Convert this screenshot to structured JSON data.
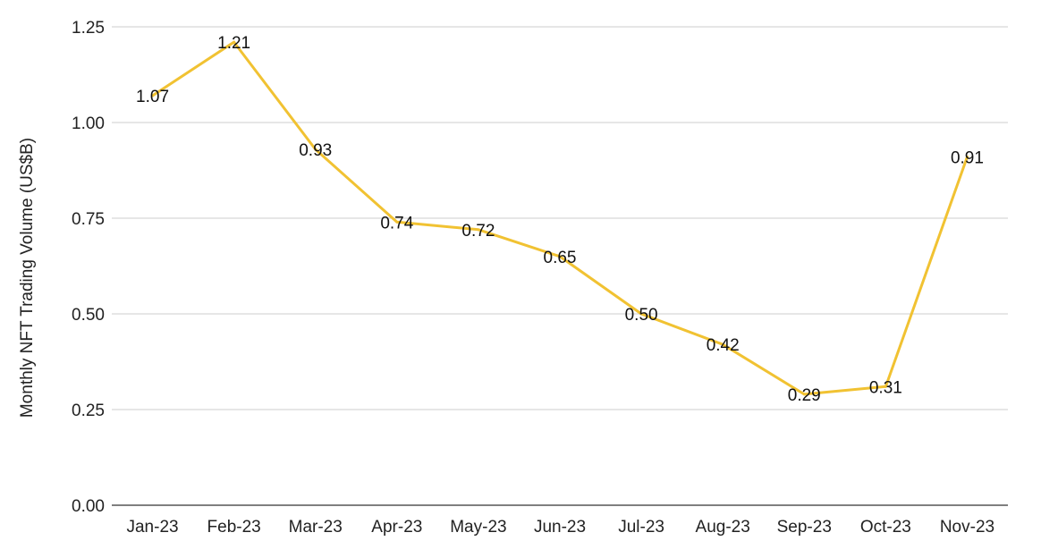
{
  "chart_data": {
    "type": "line",
    "title": "",
    "xlabel": "",
    "ylabel": "Monthly NFT Trading Volume (US$B)",
    "categories": [
      "Jan-23",
      "Feb-23",
      "Mar-23",
      "Apr-23",
      "May-23",
      "Jun-23",
      "Jul-23",
      "Aug-23",
      "Sep-23",
      "Oct-23",
      "Nov-23"
    ],
    "series": [
      {
        "values": [
          1.07,
          1.21,
          0.93,
          0.74,
          0.72,
          0.65,
          0.5,
          0.42,
          0.29,
          0.31,
          0.91
        ],
        "data_labels": [
          "1.07",
          "1.21",
          "0.93",
          "0.74",
          "0.72",
          "0.65",
          "0.50",
          "0.42",
          "0.29",
          "0.31",
          "0.91"
        ]
      }
    ],
    "ylim": [
      0,
      1.25
    ],
    "yticks": [
      0,
      0.25,
      0.5,
      0.75,
      1.0,
      1.25
    ],
    "ytick_labels": [
      "0.00",
      "0.25",
      "0.50",
      "0.75",
      "1.00",
      "1.25"
    ],
    "grid": true,
    "legend": "none",
    "colors": {
      "line": "#f1c232",
      "grid": "#cccccc",
      "axis": "#333333",
      "text": "#222222"
    }
  }
}
